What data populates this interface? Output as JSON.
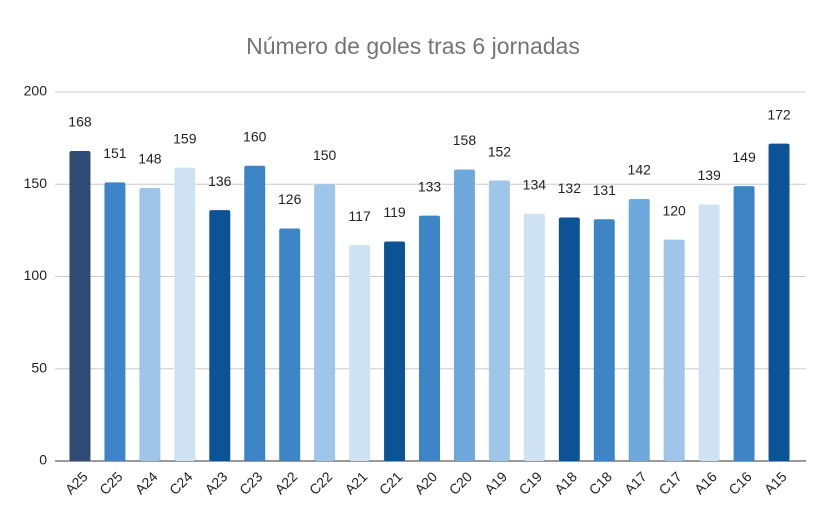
{
  "chart_data": {
    "type": "bar",
    "title": "Número de goles tras 6 jornadas",
    "categories": [
      "A25",
      "C25",
      "A24",
      "C24",
      "A23",
      "C23",
      "A22",
      "C22",
      "A21",
      "C21",
      "A20",
      "C20",
      "A19",
      "C19",
      "A18",
      "C18",
      "A17",
      "C17",
      "A16",
      "C16",
      "A15"
    ],
    "values": [
      168,
      151,
      148,
      159,
      136,
      160,
      126,
      150,
      117,
      119,
      133,
      158,
      152,
      134,
      132,
      131,
      142,
      120,
      139,
      149,
      172
    ],
    "colors": [
      "#2e4a75",
      "#3d85c6",
      "#9fc5e8",
      "#cfe2f3",
      "#0b5394",
      "#3d85c6",
      "#3d85c6",
      "#9fc5e8",
      "#cfe2f3",
      "#0b5394",
      "#3d85c6",
      "#6fa8dc",
      "#9fc5e8",
      "#cfe2f3",
      "#0b5394",
      "#3d85c6",
      "#6fa8dc",
      "#9fc5e8",
      "#cfe2f3",
      "#3d85c6",
      "#0b5394"
    ],
    "ylim": [
      0,
      200
    ],
    "yticks": [
      0,
      50,
      100,
      150,
      200
    ],
    "grid": true
  }
}
